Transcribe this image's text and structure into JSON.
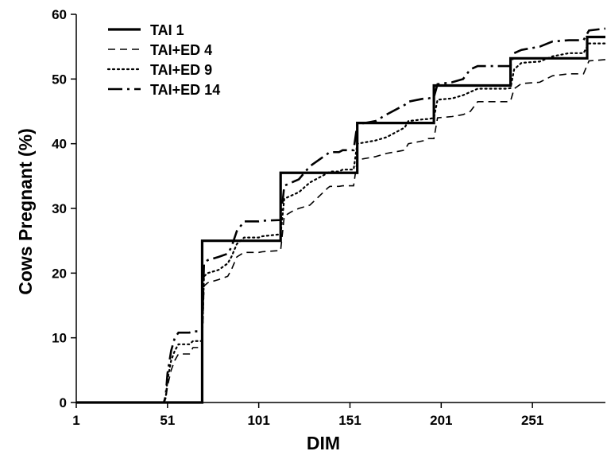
{
  "chart_data": {
    "type": "line",
    "title": "",
    "xlabel": "DIM",
    "ylabel": "Cows Pregnant (%)",
    "xlim": [
      1,
      291
    ],
    "ylim": [
      0,
      60
    ],
    "x_ticks": [
      1,
      51,
      101,
      151,
      201,
      251
    ],
    "y_ticks": [
      0,
      10,
      20,
      30,
      40,
      50,
      60
    ],
    "grid": false,
    "legend_position": "top-left",
    "series": [
      {
        "name": "TAI 1",
        "style": "solid",
        "width": 3.2,
        "color": "#000000",
        "x": [
          1,
          70,
          70,
          113,
          113,
          155,
          155,
          197,
          197,
          239,
          239,
          281,
          281,
          291
        ],
        "y": [
          0,
          0,
          25.0,
          25.0,
          35.5,
          35.5,
          43.2,
          43.2,
          49.0,
          49.0,
          53.2,
          53.2,
          56.5,
          56.5
        ]
      },
      {
        "name": "TAI+ED 4",
        "style": "dashed",
        "dash": "9,6",
        "width": 1.6,
        "color": "#000000",
        "x": [
          1,
          49,
          50,
          51,
          53,
          55,
          57,
          63,
          65,
          69,
          70,
          71,
          73,
          79,
          84,
          86,
          89,
          93,
          101,
          103,
          113,
          115,
          119,
          123,
          129,
          139,
          140,
          145,
          147,
          153,
          155,
          165,
          171,
          181,
          183,
          192,
          194,
          197,
          199,
          207,
          213,
          217,
          221,
          237,
          239,
          241,
          245,
          255,
          262,
          271,
          279,
          282,
          291
        ],
        "y": [
          0,
          0,
          0.5,
          2.5,
          5.0,
          6.5,
          7.5,
          7.5,
          8.5,
          8.5,
          8.5,
          18.0,
          18.5,
          19.0,
          19.5,
          20.5,
          22.5,
          23.2,
          23.2,
          23.3,
          23.5,
          28.8,
          29.5,
          30.0,
          30.5,
          33.2,
          33.4,
          33.4,
          33.5,
          33.5,
          37.5,
          38.0,
          38.5,
          39.0,
          40.0,
          40.5,
          40.8,
          40.8,
          44.0,
          44.2,
          44.5,
          45.0,
          46.5,
          46.5,
          46.6,
          48.5,
          49.3,
          49.5,
          50.5,
          50.8,
          50.8,
          52.8,
          53.0
        ]
      },
      {
        "name": "TAI+ED 9",
        "style": "dotted",
        "dash": "2,4",
        "width": 2.2,
        "color": "#000000",
        "x": [
          1,
          49,
          50,
          51,
          53,
          55,
          57,
          63,
          65,
          69,
          70,
          71,
          73,
          79,
          84,
          86,
          89,
          93,
          101,
          103,
          113,
          115,
          119,
          123,
          129,
          139,
          140,
          145,
          147,
          153,
          155,
          165,
          171,
          181,
          183,
          192,
          194,
          197,
          199,
          207,
          213,
          217,
          221,
          237,
          239,
          241,
          245,
          255,
          262,
          271,
          279,
          282,
          291
        ],
        "y": [
          0,
          0,
          0.7,
          3.5,
          6.5,
          8.0,
          9.0,
          9.0,
          9.5,
          9.5,
          9.5,
          19.5,
          20.0,
          20.5,
          21.5,
          22.5,
          24.5,
          25.5,
          25.5,
          25.7,
          26.0,
          31.5,
          32.0,
          32.5,
          34.0,
          35.5,
          35.7,
          35.7,
          36.0,
          36.0,
          40.0,
          40.5,
          41.0,
          42.5,
          43.5,
          43.8,
          43.8,
          44.0,
          46.8,
          47.0,
          47.5,
          48.0,
          48.5,
          48.5,
          48.6,
          51.5,
          52.5,
          52.7,
          53.5,
          54.0,
          54.0,
          55.5,
          55.5
        ]
      },
      {
        "name": "TAI+ED 14",
        "style": "dashdot",
        "dash": "18,6,3,6",
        "width": 2.6,
        "color": "#000000",
        "x": [
          1,
          49,
          50,
          51,
          53,
          55,
          57,
          63,
          65,
          69,
          70,
          71,
          73,
          79,
          84,
          86,
          89,
          93,
          101,
          103,
          113,
          115,
          119,
          123,
          129,
          139,
          140,
          145,
          147,
          153,
          155,
          165,
          171,
          181,
          183,
          192,
          194,
          197,
          199,
          207,
          213,
          217,
          221,
          237,
          239,
          241,
          245,
          255,
          262,
          271,
          279,
          282,
          291
        ],
        "y": [
          0,
          0,
          1.0,
          4.5,
          8.0,
          10.0,
          10.8,
          10.8,
          11.0,
          11.0,
          11.0,
          21.5,
          22.0,
          22.5,
          23.0,
          24.0,
          26.5,
          28.0,
          28.0,
          28.1,
          28.2,
          33.5,
          34.0,
          34.5,
          36.5,
          38.5,
          38.7,
          38.7,
          39.0,
          39.0,
          43.0,
          43.5,
          44.5,
          46.0,
          46.5,
          47.0,
          47.0,
          47.2,
          49.2,
          49.5,
          50.0,
          51.5,
          52.0,
          52.0,
          52.0,
          54.0,
          54.5,
          55.0,
          55.8,
          56.0,
          56.0,
          57.5,
          57.8
        ]
      }
    ]
  }
}
